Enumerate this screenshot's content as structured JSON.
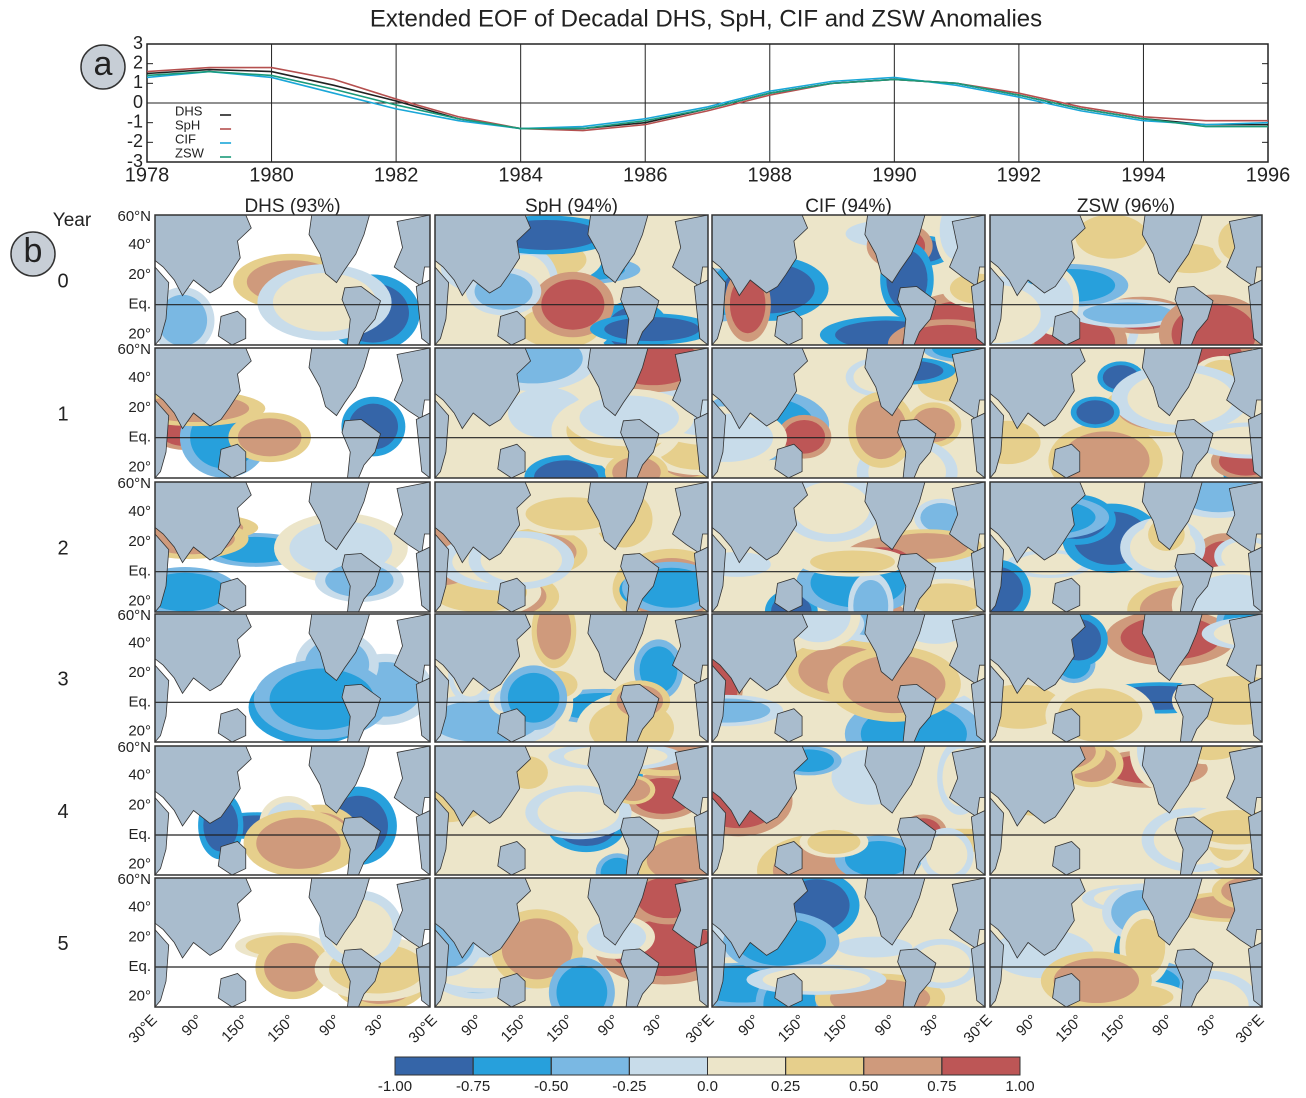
{
  "chart_data": [
    {
      "type": "line",
      "title": "Extended EOF of Decadal DHS, SpH, CIF and ZSW Anomalies",
      "panel_label": "a",
      "x": [
        1978,
        1979,
        1980,
        1981,
        1982,
        1983,
        1984,
        1985,
        1986,
        1987,
        1988,
        1989,
        1990,
        1991,
        1992,
        1993,
        1994,
        1995,
        1996
      ],
      "series": [
        {
          "name": "DHS",
          "color": "#222222",
          "values": [
            1.5,
            1.7,
            1.6,
            0.9,
            0.1,
            -0.8,
            -1.3,
            -1.3,
            -1.0,
            -0.3,
            0.5,
            1.0,
            1.2,
            1.0,
            0.4,
            -0.3,
            -0.8,
            -1.1,
            -1.1
          ]
        },
        {
          "name": "SpH",
          "color": "#b5504f",
          "values": [
            1.6,
            1.8,
            1.8,
            1.2,
            0.2,
            -0.7,
            -1.3,
            -1.4,
            -1.1,
            -0.4,
            0.4,
            1.0,
            1.2,
            1.0,
            0.5,
            -0.2,
            -0.7,
            -0.9,
            -0.9
          ]
        },
        {
          "name": "CIF",
          "color": "#1aa7d8",
          "values": [
            1.3,
            1.6,
            1.3,
            0.5,
            -0.3,
            -0.9,
            -1.3,
            -1.2,
            -0.8,
            -0.2,
            0.6,
            1.1,
            1.3,
            0.9,
            0.3,
            -0.4,
            -0.9,
            -1.1,
            -1.0
          ]
        },
        {
          "name": "ZSW",
          "color": "#1a9a7a",
          "values": [
            1.4,
            1.6,
            1.4,
            0.7,
            -0.1,
            -0.8,
            -1.3,
            -1.3,
            -0.9,
            -0.3,
            0.5,
            1.0,
            1.2,
            1.0,
            0.4,
            -0.3,
            -0.8,
            -1.2,
            -1.2
          ]
        }
      ],
      "xlim": [
        1978,
        1996
      ],
      "xticks": [
        1978,
        1980,
        1982,
        1984,
        1986,
        1988,
        1990,
        1992,
        1994,
        1996
      ],
      "ylim": [
        -3,
        3
      ],
      "yticks": [
        -3,
        -2,
        -1,
        0,
        1,
        2,
        3
      ],
      "grid": true,
      "legend": "lower left"
    },
    {
      "type": "map-grid",
      "panel_label": "b",
      "row_title": "Year",
      "columns": [
        "DHS (93%)",
        "SpH (94%)",
        "CIF (94%)",
        "ZSW (96%)"
      ],
      "rows": [
        "0",
        "1",
        "2",
        "3",
        "4",
        "5"
      ],
      "lat_labels": [
        "60°N",
        "40°",
        "20°",
        "Eq.",
        "20°"
      ],
      "lon_labels": [
        "30°E",
        "90°",
        "150°",
        "150°",
        "90°",
        "30°",
        "30°E"
      ],
      "land_color": "#a9bccd",
      "colorbar": {
        "colors": [
          "#3565a8",
          "#27a0dc",
          "#7ab8e3",
          "#c8dcea",
          "#ece5c9",
          "#e6cf8c",
          "#cf9a7c",
          "#bd5656"
        ],
        "ticks": [
          {
            "value": -1,
            "label": "-1.00"
          },
          {
            "value": -0.75,
            "label": "-0.75"
          },
          {
            "value": -0.5,
            "label": "-0.50"
          },
          {
            "value": -0.25,
            "label": "-0.25"
          },
          {
            "value": 0,
            "label": "0.0"
          },
          {
            "value": 0.25,
            "label": "0.25"
          },
          {
            "value": 0.5,
            "label": "0.50"
          },
          {
            "value": 0.75,
            "label": "0.75"
          },
          {
            "value": 1,
            "label": "1.00"
          }
        ],
        "lim": [
          -1,
          1
        ]
      }
    }
  ]
}
